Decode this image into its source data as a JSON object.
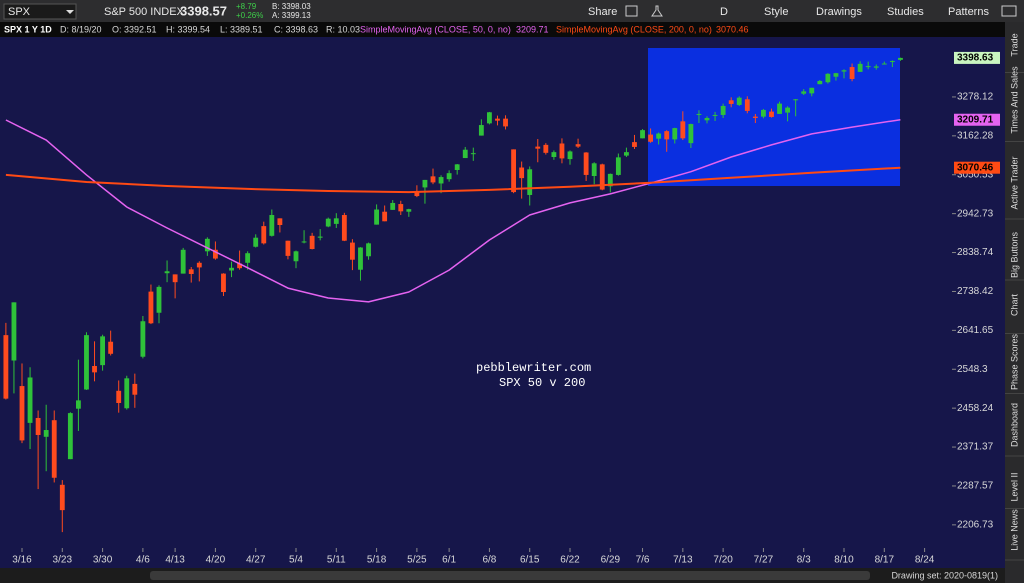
{
  "toolbar": {
    "symbol": "SPX",
    "description": "S&P 500 INDEX",
    "last": "3398.57",
    "change": "+8.79",
    "change_pct": "+0.26%",
    "bid": "B: 3398.03",
    "ask": "A: 3399.13",
    "buttons": [
      "Share",
      "D",
      "Style",
      "Drawings",
      "Studies",
      "Patterns"
    ]
  },
  "study_bar": {
    "chart_label": "SPX 1 Y 1D",
    "date": "D: 8/19/20",
    "open": "O: 3392.51",
    "high": "H: 3399.54",
    "low": "L: 3389.51",
    "close": "C: 3398.63",
    "range": "R: 10.03",
    "sma50_label": "SimpleMovingAvg (CLOSE, 50, 0, no)",
    "sma200_label": "SimpleMovingAvg (CLOSE, 200, 0, no)"
  },
  "side_tabs": [
    "Trade",
    "Times And Sales",
    "Active Trader",
    "Big Buttons",
    "Chart",
    "Phase Scores",
    "Dashboard",
    "Level II",
    "Live News"
  ],
  "footer": {
    "drawing_set": "Drawing set: 2020-0819(1)"
  },
  "chart_data": {
    "type": "candlestick",
    "log_scale": true,
    "up_color": "#2fc23a",
    "down_color": "#ff4b1e",
    "annotations": [
      "pebblewriter.com",
      "SPX 50 v 200"
    ],
    "xlim": [
      -0.73,
      117.4
    ],
    "xticks": [
      {
        "value": 2,
        "label": "3/16"
      },
      {
        "value": 7,
        "label": "3/23"
      },
      {
        "value": 12,
        "label": "3/30"
      },
      {
        "value": 17,
        "label": "4/6"
      },
      {
        "value": 21,
        "label": "4/13"
      },
      {
        "value": 26,
        "label": "4/20"
      },
      {
        "value": 31,
        "label": "4/27"
      },
      {
        "value": 36,
        "label": "5/4"
      },
      {
        "value": 41,
        "label": "5/11"
      },
      {
        "value": 46,
        "label": "5/18"
      },
      {
        "value": 51,
        "label": "5/25"
      },
      {
        "value": 55,
        "label": "6/1"
      },
      {
        "value": 60,
        "label": "6/8"
      },
      {
        "value": 65,
        "label": "6/15"
      },
      {
        "value": 70,
        "label": "6/22"
      },
      {
        "value": 75,
        "label": "6/29"
      },
      {
        "value": 79,
        "label": "7/6"
      },
      {
        "value": 84,
        "label": "7/13"
      },
      {
        "value": 89,
        "label": "7/20"
      },
      {
        "value": 94,
        "label": "7/27"
      },
      {
        "value": 99,
        "label": "8/3"
      },
      {
        "value": 104,
        "label": "8/10"
      },
      {
        "value": 109,
        "label": "8/17"
      },
      {
        "value": 114,
        "label": "8/24"
      }
    ],
    "ylim": [
      2160,
      3465
    ],
    "yticks": [
      3278.12,
      3162.28,
      3050.53,
      2942.73,
      2838.74,
      2738.42,
      2641.65,
      2548.3,
      2458.24,
      2371.37,
      2287.57,
      2206.73
    ],
    "open": [
      2630,
      2569,
      2509,
      2425,
      2436,
      2394,
      2431,
      2290,
      2345,
      2457,
      2501,
      2556,
      2558,
      2614,
      2498,
      2458,
      2514,
      2578,
      2738,
      2685,
      2785,
      2782,
      2784,
      2795,
      2812,
      2842,
      2846,
      2784,
      2792,
      2810,
      2812,
      2854,
      2909,
      2883,
      2930,
      2870,
      2816,
      2868,
      2883,
      2878,
      2908,
      2915,
      2939,
      2865,
      2794,
      2829,
      2913,
      2948,
      2953,
      2969,
      2948,
      3004,
      3015,
      3046,
      3026,
      3038,
      3064,
      3098,
      3112,
      3163,
      3199,
      3213,
      3213,
      3123,
      3071,
      2994,
      3131,
      3136,
      3101,
      3140,
      3095,
      3138,
      3114,
      3047,
      3080,
      3018,
      3050,
      3105,
      3144,
      3155,
      3166,
      3154,
      3176,
      3152,
      3205,
      3141,
      3225,
      3208,
      3224,
      3224,
      3268,
      3254,
      3271,
      3219,
      3219,
      3234,
      3227,
      3231,
      3270,
      3288,
      3289,
      3317,
      3323,
      3340,
      3356,
      3370,
      3355,
      3372,
      3368,
      3380,
      3388,
      3392.51
    ],
    "high": [
      2660,
      2711,
      2562,
      2553,
      2453,
      2466,
      2453,
      2300,
      2449,
      2571,
      2637,
      2615,
      2631,
      2641,
      2522,
      2533,
      2538,
      2677,
      2756,
      2754,
      2818,
      2782,
      2851,
      2801,
      2816,
      2879,
      2868,
      2785,
      2815,
      2844,
      2842,
      2887,
      2921,
      2954,
      2930,
      2870,
      2844,
      2898,
      2891,
      2901,
      2932,
      2944,
      2945,
      2874,
      2853,
      2865,
      2968,
      2965,
      2980,
      2978,
      2956,
      3021,
      3036,
      3068,
      3049,
      3063,
      3081,
      3130,
      3128,
      3211,
      3233,
      3222,
      3223,
      3123,
      3088,
      3074,
      3153,
      3141,
      3120,
      3155,
      3120,
      3154,
      3115,
      3086,
      3082,
      3054,
      3111,
      3128,
      3165,
      3182,
      3184,
      3172,
      3179,
      3186,
      3235,
      3198,
      3238,
      3220,
      3233,
      3258,
      3277,
      3280,
      3280,
      3227,
      3242,
      3243,
      3264,
      3250,
      3272,
      3302,
      3306,
      3330,
      3351,
      3352,
      3363,
      3381,
      3388,
      3387,
      3378,
      3387,
      3391,
      3399.54
    ],
    "low": [
      2478,
      2492,
      2380,
      2367,
      2281,
      2319,
      2295,
      2192,
      2345,
      2407,
      2500,
      2520,
      2545,
      2581,
      2448,
      2455,
      2459,
      2574,
      2657,
      2659,
      2762,
      2721,
      2784,
      2761,
      2764,
      2830,
      2820,
      2727,
      2775,
      2794,
      2794,
      2852,
      2860,
      2881,
      2892,
      2821,
      2798,
      2863,
      2847,
      2871,
      2906,
      2904,
      2869,
      2793,
      2766,
      2820,
      2913,
      2922,
      2953,
      2939,
      2934,
      2988,
      2970,
      3024,
      2999,
      3031,
      3051,
      3098,
      3090,
      3163,
      3196,
      3193,
      3181,
      2999,
      2984,
      2965,
      3086,
      3108,
      3093,
      3083,
      3079,
      3127,
      3033,
      3024,
      3007,
      3001,
      3048,
      3101,
      3124,
      3155,
      3142,
      3137,
      3116,
      3140,
      3150,
      3127,
      3200,
      3199,
      3206,
      3215,
      3247,
      3251,
      3229,
      3200,
      3214,
      3216,
      3227,
      3205,
      3220,
      3284,
      3280,
      3317,
      3319,
      3328,
      3335,
      3326,
      3355,
      3363,
      3362,
      3379,
      3370,
      3389.51
    ],
    "close": [
      2480,
      2711,
      2386,
      2529,
      2398,
      2409,
      2305,
      2237,
      2447,
      2476,
      2630,
      2541,
      2627,
      2585,
      2470,
      2527,
      2489,
      2664,
      2659,
      2750,
      2790,
      2762,
      2846,
      2783,
      2800,
      2875,
      2823,
      2737,
      2799,
      2798,
      2837,
      2878,
      2863,
      2939,
      2912,
      2830,
      2842,
      2868,
      2848,
      2881,
      2929,
      2930,
      2870,
      2820,
      2852,
      2863,
      2954,
      2922,
      2972,
      2949,
      2955,
      2991,
      3036,
      3029,
      3044,
      3055,
      3080,
      3122,
      3112,
      3194,
      3232,
      3207,
      3190,
      3002,
      3041,
      3066,
      3125,
      3113,
      3115,
      3097,
      3117,
      3131,
      3050,
      3083,
      3009,
      3053,
      3100,
      3115,
      3130,
      3179,
      3145,
      3169,
      3152,
      3185,
      3155,
      3197,
      3227,
      3215,
      3224,
      3251,
      3257,
      3276,
      3236,
      3215,
      3239,
      3218,
      3258,
      3246,
      3271,
      3295,
      3306,
      3327,
      3349,
      3351,
      3360,
      3333,
      3380,
      3373,
      3372,
      3381,
      3389,
      3398.63
    ],
    "series": [
      {
        "name": "SimpleMovingAvg (CLOSE, 50, 0, no)",
        "color": "#e463f0",
        "x": [
          0,
          5,
          10,
          15,
          20,
          25,
          30,
          35,
          40,
          45,
          50,
          55,
          60,
          65,
          70,
          75,
          80,
          85,
          90,
          95,
          100,
          105,
          111
        ],
        "values": [
          3209,
          3150,
          3050,
          2961,
          2904,
          2851,
          2799,
          2747,
          2722,
          2712,
          2737,
          2793,
          2872,
          2939,
          2972,
          2997,
          3027,
          3059,
          3101,
          3136,
          3168,
          3188,
          3209.71
        ]
      },
      {
        "name": "SimpleMovingAvg (CLOSE, 200, 0, no)",
        "color": "#ff4a14",
        "x": [
          0,
          10,
          20,
          30,
          40,
          50,
          60,
          70,
          80,
          90,
          100,
          111
        ],
        "values": [
          3050,
          3030,
          3019,
          3011,
          3005,
          3002,
          3008,
          3017,
          3028,
          3042,
          3056,
          3070.46
        ]
      }
    ]
  }
}
